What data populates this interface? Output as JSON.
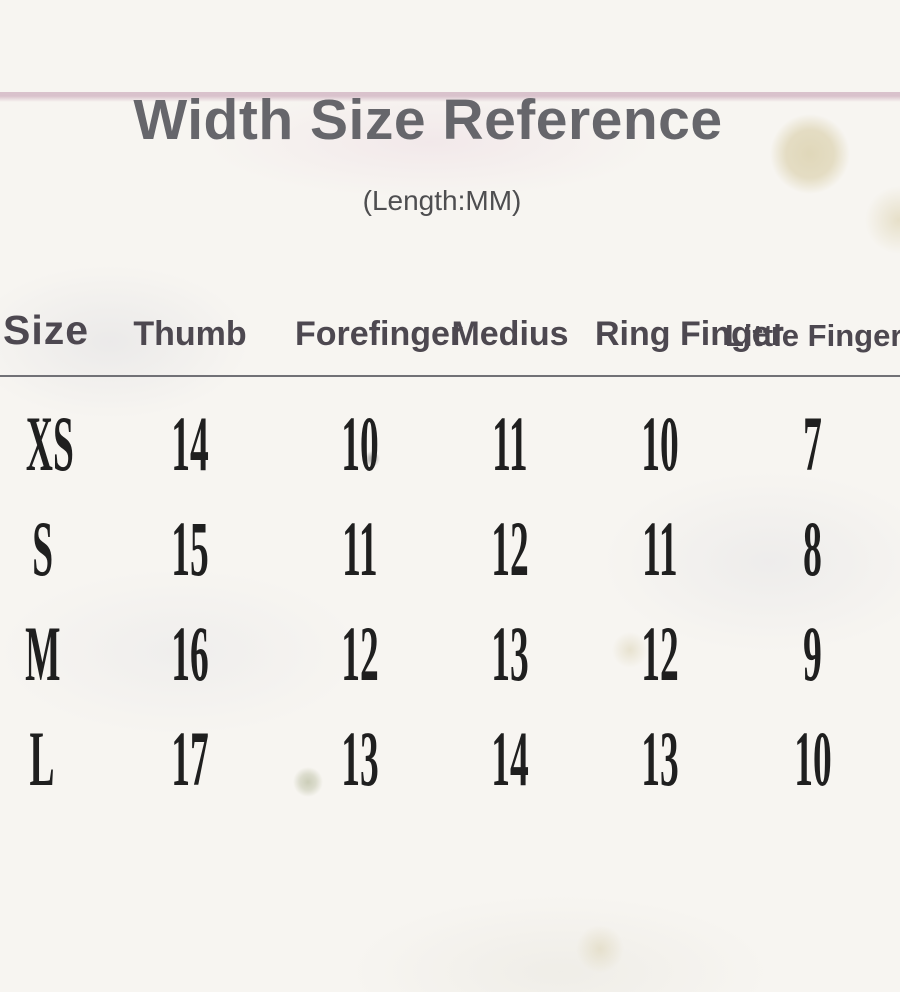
{
  "page": {
    "title": "Width Size Reference",
    "subtitle": "(Length:MM)"
  },
  "chart_data": {
    "type": "table",
    "title": "Width Size Reference",
    "subtitle": "(Length:MM)",
    "unit": "mm",
    "columns": [
      "Size",
      "Thumb",
      "Forefinger",
      "Medius",
      "Ring Finger",
      "Little Finger"
    ],
    "rows": [
      [
        "XS",
        14,
        10,
        11,
        10,
        7
      ],
      [
        "S",
        15,
        11,
        12,
        11,
        8
      ],
      [
        "M",
        16,
        12,
        13,
        12,
        9
      ],
      [
        "L",
        17,
        13,
        14,
        13,
        10
      ]
    ]
  },
  "colors": {
    "background": "#f7f5f1",
    "top_strip_pink": "#d9c2cc",
    "title_gray": "#66666b",
    "header_gray": "#4d4850",
    "number_black": "#1f1f1f",
    "divider_gray": "#717176",
    "stain_tan": "#cdbf8c",
    "stain_olive": "#a8ad8a"
  }
}
